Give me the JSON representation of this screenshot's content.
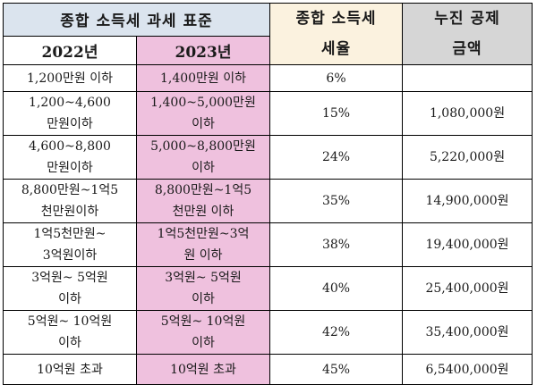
{
  "headers": {
    "standard": "종합 소득세 과세 표준",
    "rate": "종합 소득세\n세율",
    "deduction": "누진 공제\n금액",
    "year_2022": "2022년",
    "year_2023": "2023년"
  },
  "rows": [
    {
      "y2022": "1,200만원 이하",
      "y2023": "1,400만원 이하",
      "rate": "6%",
      "deduction": ""
    },
    {
      "y2022": "1,200~4,600\n만원이하",
      "y2023": "1,400~5,000만원\n이하",
      "rate": "15%",
      "deduction": "1,080,000원"
    },
    {
      "y2022": "4,600~8,800\n만원이하",
      "y2023": "5,000~8,800만원\n이하",
      "rate": "24%",
      "deduction": "5,220,000원"
    },
    {
      "y2022": "8,800만원~1억5\n천만원이하",
      "y2023": "8,800만원~1억5\n천만원 이하",
      "rate": "35%",
      "deduction": "14,900,000원"
    },
    {
      "y2022": "1억5천만원~\n3억원이하",
      "y2023": "1억5천만원~3억\n원 이하",
      "rate": "38%",
      "deduction": "19,400,000원"
    },
    {
      "y2022": "3억원~ 5억원\n이하",
      "y2023": "3억원~ 5억원\n이하",
      "rate": "40%",
      "deduction": "25,400,000원"
    },
    {
      "y2022": "5억원~ 10억원\n이하",
      "y2023": "5억원~ 10억원\n이하",
      "rate": "42%",
      "deduction": "35,400,000원"
    },
    {
      "y2022": "10억원 초과",
      "y2023": "10억원 초과",
      "rate": "45%",
      "deduction": "6,5400,000원"
    }
  ]
}
